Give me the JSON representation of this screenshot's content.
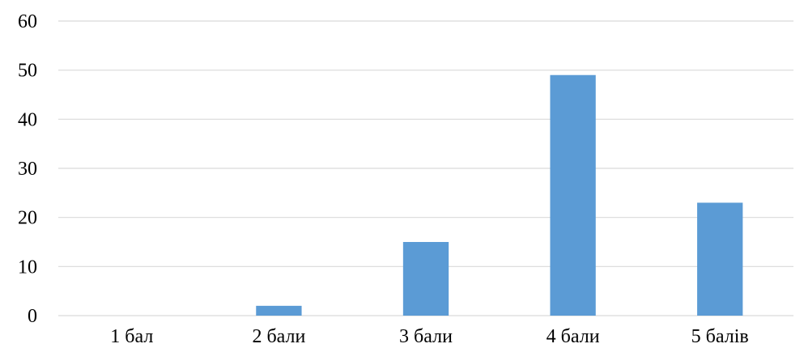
{
  "chart_data": {
    "type": "bar",
    "categories": [
      "1 бал",
      "2 бали",
      "3 бали",
      "4 бали",
      "5 балів"
    ],
    "values": [
      0,
      2,
      15,
      49,
      23
    ],
    "ylim": [
      0,
      60
    ],
    "yticks": [
      0,
      10,
      20,
      30,
      40,
      50,
      60
    ],
    "grid": true,
    "legend": "none",
    "colors": {
      "bar": "#5b9bd5",
      "grid": "#d9d9d9",
      "text": "#000000"
    }
  }
}
